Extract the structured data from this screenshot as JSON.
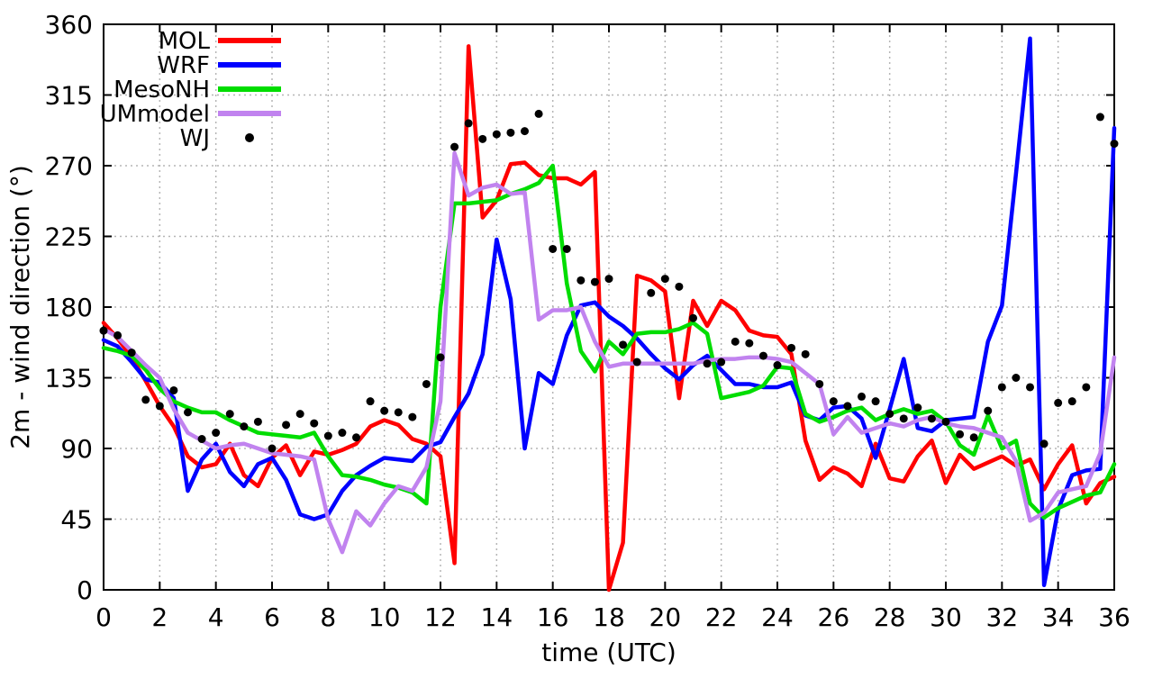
{
  "chart_data": {
    "type": "line",
    "title": "",
    "xlabel": "time (UTC)",
    "ylabel": "2m - wind direction (°)",
    "xlim": [
      0,
      36
    ],
    "ylim": [
      0,
      360
    ],
    "xticks": [
      0,
      2,
      4,
      6,
      8,
      10,
      12,
      14,
      16,
      18,
      20,
      22,
      24,
      26,
      28,
      30,
      32,
      34,
      36
    ],
    "yticks": [
      0,
      45,
      90,
      135,
      180,
      225,
      270,
      315,
      360
    ],
    "grid": true,
    "grid_color": "#b5b5b5",
    "border_color": "#000000",
    "legend_position": "top-left-inside",
    "x_start": 0,
    "x_step": 0.5,
    "series": [
      {
        "name": "MOL",
        "style": "line",
        "color": "#ff0000",
        "values": [
          170,
          160,
          148,
          133,
          117,
          104,
          85,
          78,
          80,
          93,
          73,
          66,
          84,
          92,
          73,
          88,
          86,
          89,
          93,
          104,
          108,
          105,
          96,
          93,
          85,
          17,
          346,
          237,
          248,
          271,
          272,
          264,
          262,
          262,
          258,
          266,
          0,
          30,
          200,
          197,
          190,
          122,
          184,
          168,
          184,
          178,
          165,
          162,
          161,
          150,
          95,
          70,
          78,
          74,
          66,
          93,
          71,
          69,
          85,
          95,
          68,
          86,
          77,
          81,
          85,
          79,
          83,
          64,
          80,
          92,
          55,
          68,
          72
        ]
      },
      {
        "name": "WRF",
        "style": "line",
        "color": "#0000ff",
        "values": [
          159,
          155,
          145,
          134,
          132,
          122,
          63,
          83,
          93,
          75,
          66,
          80,
          84,
          70,
          48,
          45,
          48,
          63,
          73,
          79,
          84,
          83,
          82,
          91,
          94,
          110,
          125,
          150,
          223,
          185,
          90,
          138,
          131,
          162,
          181,
          183,
          174,
          168,
          160,
          150,
          141,
          134,
          143,
          149,
          140,
          131,
          131,
          129,
          129,
          132,
          111,
          108,
          116,
          117,
          109,
          84,
          115,
          147,
          103,
          101,
          108,
          109,
          110,
          158,
          181,
          265,
          351,
          3,
          51,
          73,
          76,
          77,
          294
        ]
      },
      {
        "name": "MesoNH",
        "style": "line",
        "color": "#00dd00",
        "values": [
          154,
          152,
          149,
          140,
          128,
          120,
          116,
          113,
          113,
          108,
          104,
          100,
          99,
          98,
          97,
          100,
          85,
          73,
          72,
          70,
          67,
          65,
          62,
          55,
          180,
          246,
          246,
          247,
          248,
          252,
          255,
          259,
          270,
          195,
          152,
          139,
          158,
          150,
          163,
          164,
          164,
          166,
          170,
          163,
          122,
          124,
          126,
          130,
          142,
          141,
          112,
          107,
          110,
          114,
          116,
          108,
          112,
          115,
          112,
          114,
          107,
          92,
          86,
          111,
          90,
          95,
          55,
          46,
          52,
          56,
          60,
          62,
          80
        ]
      },
      {
        "name": "UMmodel",
        "style": "line",
        "color": "#c183ef",
        "values": [
          166,
          161,
          152,
          143,
          135,
          115,
          100,
          95,
          90,
          92,
          93,
          90,
          87,
          86,
          85,
          83,
          45,
          24,
          50,
          41,
          55,
          66,
          63,
          78,
          120,
          278,
          251,
          256,
          258,
          252,
          253,
          172,
          178,
          178,
          180,
          158,
          142,
          144,
          144,
          144,
          144,
          144,
          144,
          146,
          147,
          147,
          148,
          148,
          147,
          145,
          138,
          131,
          99,
          110,
          100,
          103,
          106,
          104,
          108,
          110,
          106,
          104,
          103,
          100,
          97,
          82,
          44,
          49,
          62,
          64,
          66,
          87,
          148
        ]
      },
      {
        "name": "WJ",
        "style": "points",
        "color": "#000000",
        "values": [
          165,
          162,
          151,
          121,
          117,
          127,
          113,
          96,
          100,
          112,
          104,
          107,
          90,
          105,
          112,
          106,
          98,
          100,
          97,
          120,
          114,
          113,
          110,
          131,
          148,
          282,
          297,
          287,
          290,
          291,
          292,
          303,
          217,
          217,
          197,
          196,
          198,
          156,
          145,
          189,
          198,
          193,
          173,
          144,
          145,
          158,
          157,
          149,
          143,
          154,
          150,
          131,
          120,
          117,
          123,
          120,
          112,
          109,
          116,
          109,
          107,
          99,
          97,
          114,
          129,
          135,
          129,
          93,
          119,
          120,
          129,
          301,
          284
        ]
      }
    ]
  }
}
